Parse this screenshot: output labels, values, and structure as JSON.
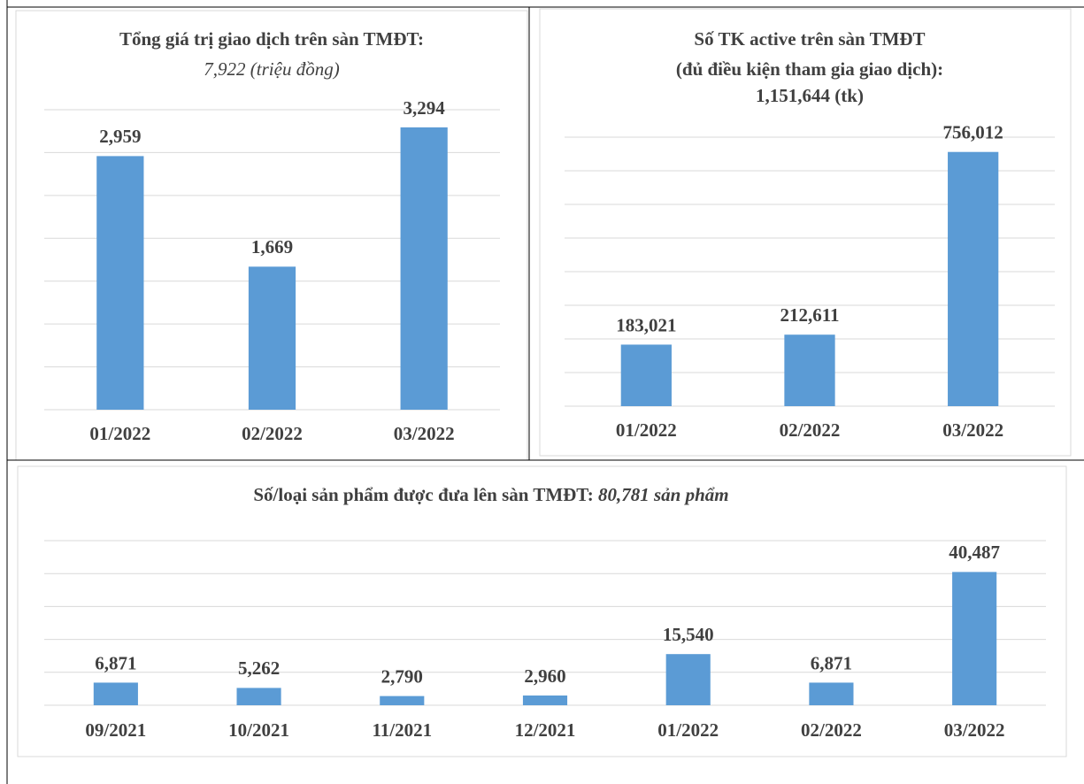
{
  "chart_data": [
    {
      "type": "bar",
      "title": "Tổng giá trị giao dịch trên sàn TMĐT:",
      "subtitle": "7,922 (triệu đồng)",
      "categories": [
        "01/2022",
        "02/2022",
        "03/2022"
      ],
      "values": [
        2959,
        1669,
        3294
      ],
      "value_labels": [
        "2,959",
        "1,669",
        "3,294"
      ],
      "color": "#5b9bd5",
      "ylim": [
        0,
        3500
      ],
      "yticks": [
        0,
        500,
        1000,
        1500,
        2000,
        2500,
        3000,
        3500
      ],
      "grid": true
    },
    {
      "type": "bar",
      "title": "Số TK active trên sàn TMĐT",
      "subtitle": "(đủ điều kiện tham gia giao dịch):",
      "total": "1,151,644 (tk)",
      "categories": [
        "01/2022",
        "02/2022",
        "03/2022"
      ],
      "values": [
        183021,
        212611,
        756012
      ],
      "value_labels": [
        "183,021",
        "212,611",
        "756,012"
      ],
      "color": "#5b9bd5",
      "ylim": [
        0,
        800000
      ],
      "yticks": [
        0,
        100000,
        200000,
        300000,
        400000,
        500000,
        600000,
        700000,
        800000
      ],
      "grid": true
    },
    {
      "type": "bar",
      "title": "Số/loại sản phẩm được đưa lên sàn TMĐT: ",
      "subtitle": "80,781 sản phẩm",
      "categories": [
        "09/2021",
        "10/2021",
        "11/2021",
        "12/2021",
        "01/2022",
        "02/2022",
        "03/2022"
      ],
      "values": [
        6871,
        5262,
        2790,
        2960,
        15540,
        6871,
        40487
      ],
      "value_labels": [
        "6,871",
        "5,262",
        "2,790",
        "2,960",
        "15,540",
        "6,871",
        "40,487"
      ],
      "color": "#5b9bd5",
      "ylim": [
        0,
        50000
      ],
      "yticks": [
        0,
        10000,
        20000,
        30000,
        40000,
        50000
      ],
      "grid": true
    }
  ]
}
